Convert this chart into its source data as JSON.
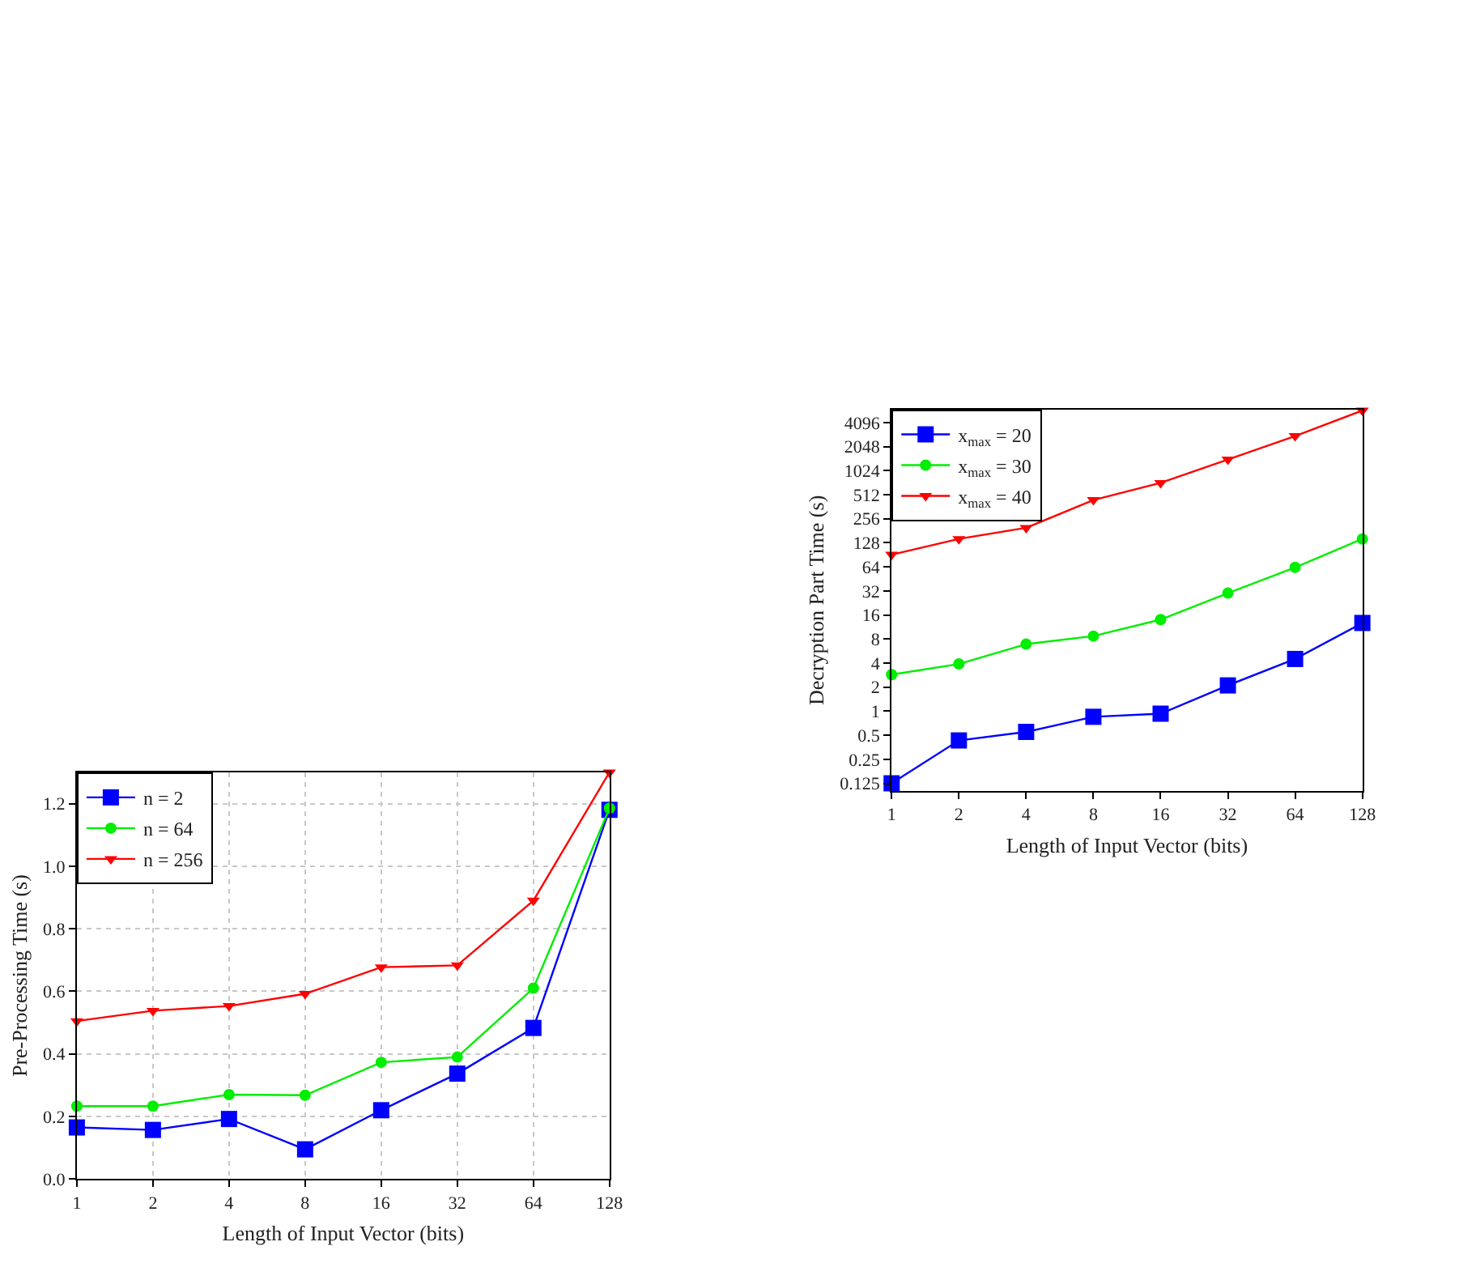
{
  "chart_data": [
    {
      "type": "line",
      "xlabel": "Length of Input Vector (bits)",
      "ylabel": "Pre-Processing Time (s)",
      "categories": [
        "1",
        "2",
        "4",
        "8",
        "16",
        "32",
        "64",
        "128"
      ],
      "series": [
        {
          "name": "n = 2",
          "color": "#0000ff",
          "marker": "square",
          "values": [
            0.165,
            0.157,
            0.192,
            0.095,
            0.22,
            0.337,
            0.483,
            1.18
          ]
        },
        {
          "name": "n = 64",
          "color": "#00ee00",
          "marker": "circle",
          "values": [
            0.233,
            0.233,
            0.27,
            0.268,
            0.373,
            0.39,
            0.61,
            1.185
          ]
        },
        {
          "name": "n = 256",
          "color": "#ff0000",
          "marker": "triangle",
          "values": [
            0.505,
            0.538,
            0.553,
            0.592,
            0.677,
            0.683,
            0.89,
            1.3
          ]
        }
      ],
      "ylim": [
        0,
        1.3
      ],
      "yticks": [
        {
          "value": 0,
          "label": "0.0"
        },
        0.2,
        0.4,
        0.6,
        0.8,
        {
          "value": 1,
          "label": "1.0"
        },
        1.2
      ],
      "grid": true,
      "legend": "top left",
      "line_style": "solid"
    },
    {
      "type": "line",
      "xlabel": "Length of Input Vector (bits)",
      "ylabel": "Decryption Part Time (s)",
      "categories": [
        "1",
        "2",
        "4",
        "8",
        "16",
        "32",
        "64",
        "128"
      ],
      "series": [
        {
          "name": "x$_{max}$ = 20",
          "color": "#0000ff",
          "marker": "square",
          "values": [
            0.125,
            0.43,
            0.55,
            0.85,
            0.93,
            2.1,
            4.5,
            12.7
          ]
        },
        {
          "name": "x$_{max}$ = 30",
          "color": "#00ee00",
          "marker": "circle",
          "values": [
            2.87,
            3.9,
            6.9,
            8.7,
            14,
            30,
            63,
            143
          ]
        },
        {
          "name": "x$_{max}$ = 40",
          "color": "#ff0000",
          "marker": "triangle",
          "values": [
            91,
            143,
            197,
            440,
            720,
            1410,
            2780,
            5800
          ]
        }
      ],
      "log": "y",
      "ylim": [
        0.1,
        6000
      ],
      "yticks": [
        0.125,
        0.25,
        0.5,
        1,
        2,
        4,
        8,
        16,
        32,
        64,
        128,
        256,
        512,
        1024,
        2048,
        4096
      ],
      "grid": false,
      "legend": "top left",
      "line_style": "solid"
    }
  ]
}
